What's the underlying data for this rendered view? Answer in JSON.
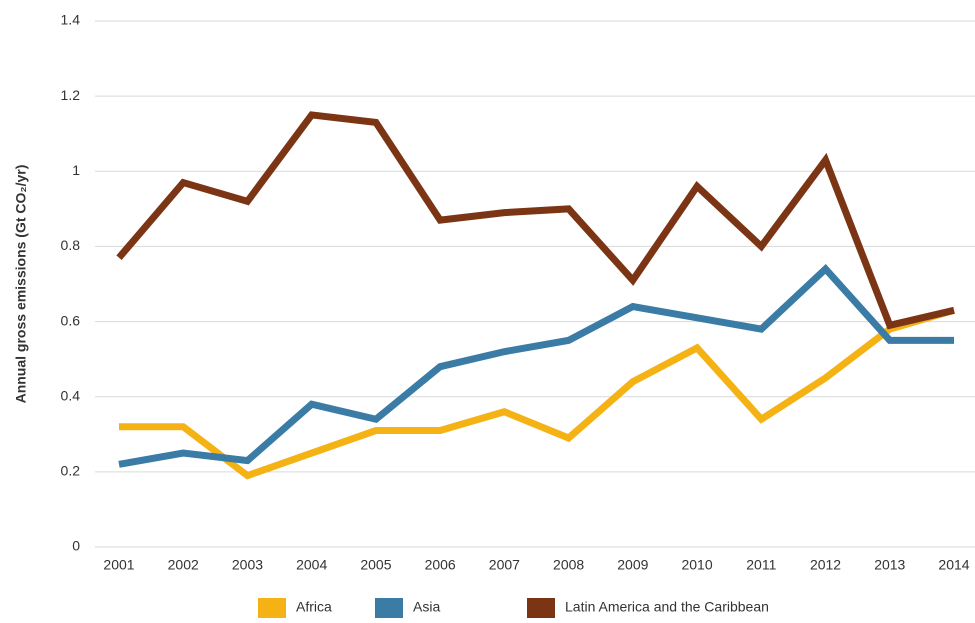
{
  "chart_data": {
    "type": "line",
    "y_label": "Annual gross emissions (Gt CO₂/yr)",
    "categories": [
      "2001",
      "2002",
      "2003",
      "2004",
      "2005",
      "2006",
      "2007",
      "2008",
      "2009",
      "2010",
      "2011",
      "2012",
      "2013",
      "2014"
    ],
    "series": [
      {
        "name": "Africa",
        "color": "#f5b214",
        "values": [
          0.32,
          0.32,
          0.19,
          0.25,
          0.31,
          0.31,
          0.36,
          0.29,
          0.44,
          0.53,
          0.34,
          0.45,
          0.58,
          0.63
        ]
      },
      {
        "name": "Asia",
        "color": "#3a7ca5",
        "values": [
          0.22,
          0.25,
          0.23,
          0.38,
          0.34,
          0.48,
          0.52,
          0.55,
          0.64,
          0.61,
          0.58,
          0.74,
          0.55,
          0.55
        ]
      },
      {
        "name": "Latin America and the Caribbean",
        "color": "#7b3514",
        "values": [
          0.77,
          0.97,
          0.92,
          1.15,
          1.13,
          0.87,
          0.89,
          0.9,
          0.71,
          0.96,
          0.8,
          1.03,
          0.59,
          0.63
        ]
      }
    ],
    "ylim": [
      0,
      1.4
    ],
    "yticks": [
      0,
      0.2,
      0.4,
      0.6,
      0.8,
      1,
      1.2,
      1.4
    ],
    "grid": true,
    "legend": "bottom"
  }
}
